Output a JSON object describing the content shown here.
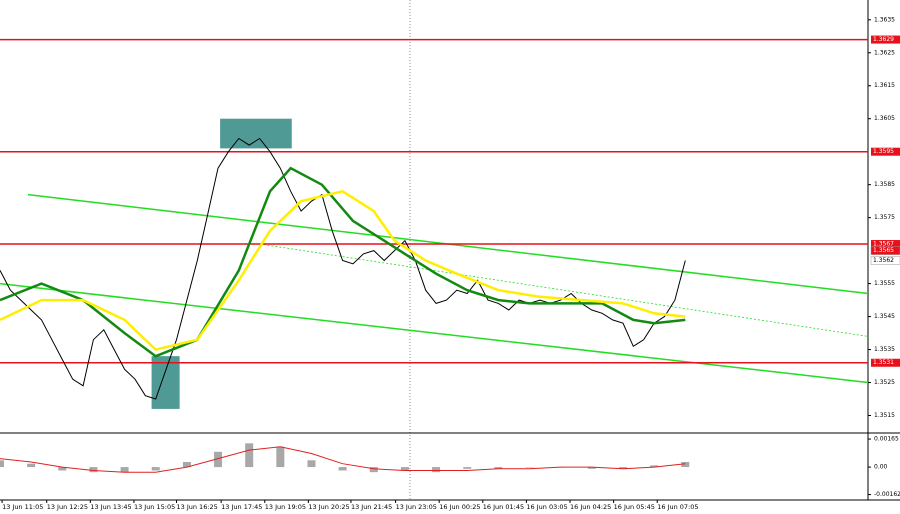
{
  "chart_data": [
    {
      "type": "line",
      "xlim": [
        0,
        83.6
      ],
      "ylim": [
        1.351,
        1.3641
      ],
      "grid": false,
      "yticks": [
        1.3635,
        1.3625,
        1.3615,
        1.3605,
        1.3585,
        1.3575,
        1.3555,
        1.3545,
        1.3535,
        1.3525,
        1.3515
      ],
      "xticks": [
        {
          "value": 0.2,
          "label": "13 Jun 11:05"
        },
        {
          "value": 4.5,
          "label": "13 Jun 12:25"
        },
        {
          "value": 8.7,
          "label": "13 Jun 13:45"
        },
        {
          "value": 12.9,
          "label": "13 Jun 15:05"
        },
        {
          "value": 17.0,
          "label": "13 Jun 16:25"
        },
        {
          "value": 21.3,
          "label": "13 Jun 17:45"
        },
        {
          "value": 25.5,
          "label": "13 Jun 19:05"
        },
        {
          "value": 29.7,
          "label": "13 Jun 20:25"
        },
        {
          "value": 33.8,
          "label": "13 Jun 21:45"
        },
        {
          "value": 38.1,
          "label": "13 Jun 23:05"
        },
        {
          "value": 42.3,
          "label": "16 Jun 00:25"
        },
        {
          "value": 46.5,
          "label": "16 Jun 01:45"
        },
        {
          "value": 50.7,
          "label": "16 Jun 03:05"
        },
        {
          "value": 54.9,
          "label": "16 Jun 04:25"
        },
        {
          "value": 59.1,
          "label": "16 Jun 05:45"
        },
        {
          "value": 63.3,
          "label": "16 Jun 07:05"
        }
      ],
      "series": [
        {
          "color": "#000000",
          "values": [
            1.3559,
            1.3553,
            1.355,
            1.3547,
            1.3544,
            1.3538,
            1.3532,
            1.3526,
            1.3524,
            1.3538,
            1.3541,
            1.3535,
            1.3529,
            1.3526,
            1.3521,
            1.352,
            1.3529,
            1.3538,
            1.355,
            1.3562,
            1.3576,
            1.359,
            1.3595,
            1.3599,
            1.3597,
            1.3599,
            1.3595,
            1.359,
            1.3583,
            1.3577,
            1.358,
            1.3582,
            1.3571,
            1.3562,
            1.3561,
            1.3564,
            1.3565,
            1.3562,
            1.3565,
            1.3568,
            1.3562,
            1.3553,
            1.3549,
            1.355,
            1.3553,
            1.3552,
            1.3556,
            1.355,
            1.3549,
            1.3547,
            1.355,
            1.3549,
            1.355,
            1.3549,
            1.355,
            1.3552,
            1.3549,
            1.3547,
            1.3546,
            1.3544,
            1.3543,
            1.3536,
            1.3538,
            1.3543,
            1.3545,
            1.355,
            1.3562
          ]
        },
        {
          "color": "#128a12",
          "x": [
            0,
            4,
            8,
            12,
            15,
            19,
            23,
            26,
            28,
            31,
            34,
            37,
            39,
            42,
            45,
            48,
            51,
            54,
            58,
            61,
            63,
            66
          ],
          "values": [
            1.355,
            1.3555,
            1.355,
            1.354,
            1.3533,
            1.3538,
            1.3559,
            1.3583,
            1.359,
            1.3585,
            1.3574,
            1.3568,
            1.3564,
            1.3558,
            1.3553,
            1.355,
            1.3549,
            1.3549,
            1.3549,
            1.3544,
            1.3543,
            1.3544
          ]
        },
        {
          "color": "#ffee00",
          "x": [
            0,
            4,
            8,
            12,
            15,
            19,
            23,
            26,
            29,
            33,
            36,
            38,
            41,
            44,
            48,
            52,
            56,
            60,
            63,
            66
          ],
          "values": [
            1.3544,
            1.355,
            1.355,
            1.3544,
            1.3535,
            1.3538,
            1.3556,
            1.3571,
            1.358,
            1.3583,
            1.3577,
            1.3568,
            1.3562,
            1.3558,
            1.3553,
            1.3551,
            1.355,
            1.3549,
            1.3546,
            1.3545
          ]
        }
      ],
      "trendlines": [
        {
          "color": "#22dd22",
          "x": [
            2.7,
            83.6
          ],
          "values": [
            1.3582,
            1.3552
          ]
        },
        {
          "color": "#22dd22",
          "x": [
            0,
            83.6
          ],
          "values": [
            1.3555,
            1.3525
          ]
        },
        {
          "color": "#22dd22",
          "style": "dotted",
          "x": [
            25,
            83.6
          ],
          "values": [
            1.3567,
            1.3539
          ]
        }
      ],
      "zones": [
        {
          "color": "#3d8f8a",
          "x": [
            21.2,
            28.1
          ],
          "values": [
            1.3605,
            1.3596
          ]
        },
        {
          "color": "#3d8f8a",
          "x": [
            14.6,
            17.3
          ],
          "values": [
            1.3533,
            1.3517
          ]
        }
      ],
      "levels": {
        "color": "#e8101a",
        "values": [
          1.3629,
          1.3595,
          1.3567,
          1.3531
        ]
      },
      "price_markers": [
        {
          "value": 1.3565,
          "color": "#e8101a"
        },
        {
          "value": 1.3562,
          "color": "#ffffff"
        }
      ]
    },
    {
      "type": "bar",
      "xlim": [
        0,
        83.6
      ],
      "ylim": [
        -0.00194,
        0.00189
      ],
      "color": "#a8a8a8",
      "yticks": [
        0.00165,
        {
          "value": 0,
          "label": "0.00"
        },
        -0.00162
      ],
      "x": [
        0,
        3,
        6,
        9,
        12,
        15,
        18,
        21,
        24,
        27,
        30,
        33,
        36,
        39,
        42,
        45,
        48,
        51,
        54,
        57,
        60,
        63,
        66
      ],
      "values": [
        0.0004,
        0.0002,
        -0.0002,
        -0.0003,
        -0.0003,
        -0.0002,
        0.0003,
        0.0009,
        0.0014,
        0.0012,
        0.0004,
        -0.0002,
        -0.0003,
        -0.0002,
        -0.0003,
        -0.0001,
        -0.0001,
        0.0,
        0.0,
        -0.0001,
        -0.0001,
        0.0001,
        0.0003
      ],
      "signal": {
        "color": "#e02020",
        "values": [
          0.0005,
          0.0003,
          0.0,
          -0.0002,
          -0.0003,
          -0.0003,
          0.0,
          0.0005,
          0.001,
          0.0012,
          0.0008,
          0.0002,
          -0.0001,
          -0.0002,
          -0.0002,
          -0.0002,
          -0.0001,
          -0.0001,
          0.0,
          0.0,
          -0.0001,
          0.0,
          0.0002
        ]
      }
    }
  ]
}
